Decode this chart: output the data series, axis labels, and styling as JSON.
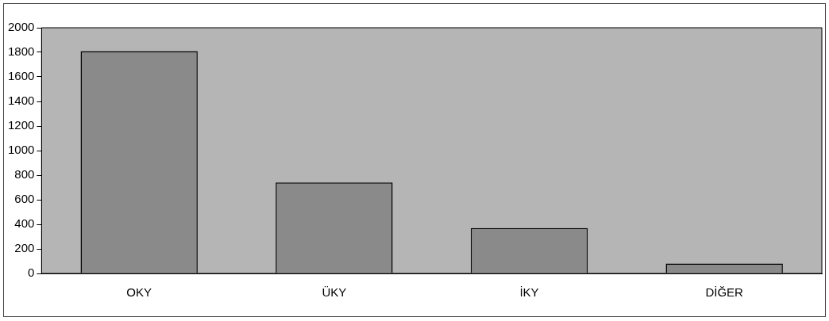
{
  "chart_data": {
    "type": "bar",
    "categories": [
      "OKY",
      "ÜKY",
      "İKY",
      "DİĞER"
    ],
    "values": [
      1810,
      740,
      370,
      80
    ],
    "color": "#8a8a8a",
    "ylim": [
      0,
      2000
    ],
    "yticks": [
      0,
      200,
      400,
      600,
      800,
      1000,
      1200,
      1400,
      1600,
      1800,
      2000
    ],
    "grid": false,
    "legend": false
  }
}
